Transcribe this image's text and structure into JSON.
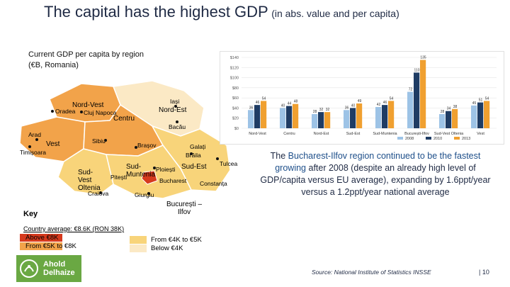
{
  "title": {
    "main": "The capital has the highest GDP",
    "sub": "(in abs. value and per capita)"
  },
  "subhead": {
    "line1": "Current GDP per capita by region",
    "line2": "(€B, Romania)"
  },
  "map": {
    "regions": [
      {
        "name": "Nord-Vest"
      },
      {
        "name": "Nord-Est"
      },
      {
        "name": "Vest"
      },
      {
        "name": "Centru"
      },
      {
        "name": "Sud-Vest Oltenia"
      },
      {
        "name": "Sud-Muntenia"
      },
      {
        "name": "Sud-Est"
      },
      {
        "name": "București – Ilfov"
      }
    ],
    "cities": [
      "Oradea",
      "Cluj Napoca",
      "Iași",
      "Bacău",
      "Arad",
      "Timișoara",
      "Sibiu",
      "Brașov",
      "Galați",
      "Brăila",
      "Tulcea",
      "Ploiești",
      "Bucharest",
      "Constanța",
      "Craiova",
      "Giurgiu",
      "Pitești"
    ],
    "colors": {
      "above_8k": "#d63a1e",
      "5k_8k": "#f2a34a",
      "4k_5k": "#f8d47a",
      "below_4k": "#fbe9c5"
    }
  },
  "key": {
    "label": "Key",
    "caption": "Country average: €8.6K (RON 38K)",
    "items": [
      {
        "label": "Above €8K",
        "color": "#d63a1e"
      },
      {
        "label": "From €5K to €8K",
        "color": "#f2a34a"
      },
      {
        "label": "From €4K to €5K",
        "color": "#f8d47a"
      },
      {
        "label": "Below €4K",
        "color": "#fbe9c5"
      }
    ]
  },
  "chart_data": {
    "type": "bar",
    "title": "",
    "ylim": [
      0,
      140
    ],
    "yticks": [
      "$0",
      "$20",
      "$40",
      "$60",
      "$80",
      "$100",
      "$120",
      "$140"
    ],
    "categories": [
      "Nord-Vest",
      "Centru",
      "Nord-Est",
      "Sud-Est",
      "Sud-Muntenia",
      "București-Ilfov",
      "Sud-Vest Oltenia",
      "Vest"
    ],
    "series": [
      {
        "name": "2008",
        "color": "#9dc3e6",
        "values": [
          36,
          40,
          28,
          36,
          42,
          72,
          28,
          45
        ]
      },
      {
        "name": "2010",
        "color": "#1f3c64",
        "values": [
          46,
          44,
          32,
          40,
          46,
          110,
          34,
          51
        ]
      },
      {
        "name": "2013",
        "color": "#f0a030",
        "values": [
          54,
          48,
          32,
          49,
          54,
          135,
          38,
          54
        ]
      }
    ],
    "data_labels": [
      [
        36,
        46,
        54
      ],
      [
        40,
        44,
        48
      ],
      [
        28,
        32,
        32
      ],
      [
        36,
        40,
        49
      ],
      [
        42,
        46,
        54
      ],
      [
        72,
        110,
        135
      ],
      [
        28,
        34,
        38
      ],
      [
        45,
        51,
        54
      ]
    ]
  },
  "callout": {
    "part1": "The ",
    "hl1": "Bucharest-Ilfov region continued to be the fastest growing",
    "part2": " after 2008 (despite an already high level of GDP/capita versus EU average), expanding by 1.6ppt/year versus a 1.2ppt/year national average"
  },
  "source": "Source: National Institute of Statistics INSSE",
  "page_number": "10",
  "logo": {
    "line1": "Ahold",
    "line2": "Delhaize",
    "color": "#6aa843"
  }
}
